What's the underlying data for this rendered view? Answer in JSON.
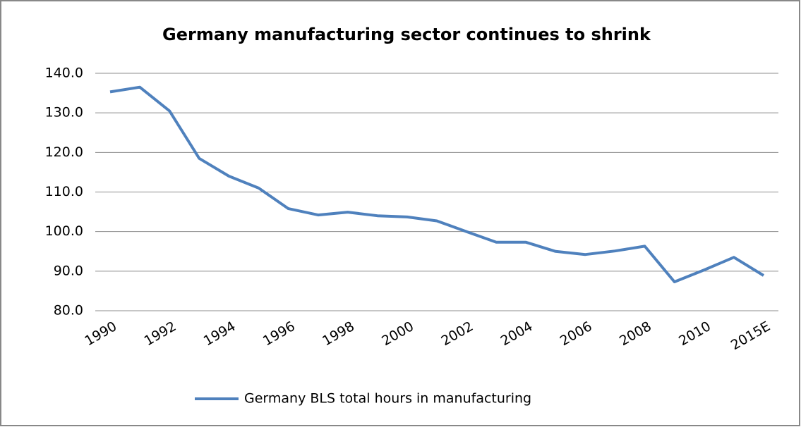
{
  "chart_data": {
    "type": "line",
    "title": "Germany manufacturing sector continues to shrink",
    "categories": [
      "1990",
      null,
      "1992",
      null,
      "1994",
      null,
      "1996",
      null,
      "1998",
      null,
      "2000",
      null,
      "2002",
      null,
      "2004",
      null,
      "2006",
      null,
      "2008",
      null,
      "2010",
      null,
      "2015E"
    ],
    "series": [
      {
        "name": "Germany BLS total hours in manufacturing",
        "color": "#4f81bd",
        "values": [
          135.3,
          136.5,
          130.5,
          118.5,
          114.0,
          111.0,
          105.8,
          104.2,
          104.9,
          104.0,
          103.7,
          102.7,
          100.0,
          97.3,
          97.3,
          95.0,
          94.2,
          95.1,
          96.3,
          87.3,
          90.3,
          93.5,
          88.9
        ]
      }
    ],
    "ylim": [
      80,
      140
    ],
    "yticks": [
      {
        "value": 80,
        "label": "80.0"
      },
      {
        "value": 90,
        "label": "90.0"
      },
      {
        "value": 100,
        "label": "100.0"
      },
      {
        "value": 110,
        "label": "110.0"
      },
      {
        "value": 120,
        "label": "120.0"
      },
      {
        "value": 130,
        "label": "130.0"
      },
      {
        "value": 140,
        "label": "140.0"
      }
    ],
    "grid": true,
    "legend": "bottom"
  }
}
